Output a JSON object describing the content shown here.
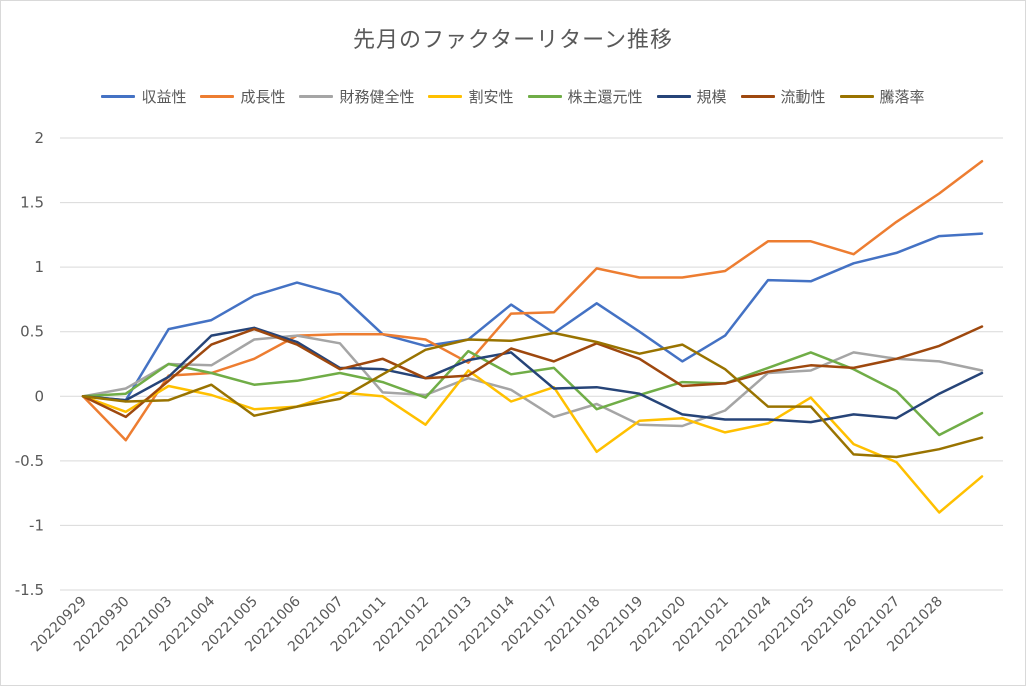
{
  "chart_data": {
    "type": "line",
    "title": "先月のファクターリターン推移",
    "xlabel": "",
    "ylabel": "",
    "ylim": [
      -1.5,
      2
    ],
    "yticks": [
      -1.5,
      -1,
      -0.5,
      0,
      0.5,
      1,
      1.5,
      2
    ],
    "grid": true,
    "legend_position": "top",
    "categories": [
      "20220929",
      "20220930",
      "20221003",
      "20221004",
      "20221005",
      "20221006",
      "20221007",
      "20221011",
      "20221012",
      "20221013",
      "20221014",
      "20221017",
      "20221018",
      "20221019",
      "20221020",
      "20221021",
      "20221024",
      "20221025",
      "20221026",
      "20221027",
      "20221028",
      ""
    ],
    "x_tick_labels": [
      "20220929",
      "20220930",
      "20221003",
      "20221004",
      "20221005",
      "20221006",
      "20221007",
      "20221011",
      "20221012",
      "20221013",
      "20221014",
      "20221017",
      "20221018",
      "20221019",
      "20221020",
      "20221021",
      "20221024",
      "20221025",
      "20221026",
      "20221027",
      "20221028"
    ],
    "series": [
      {
        "name": "収益性",
        "color": "#4472C4",
        "values": [
          0,
          -0.03,
          0.52,
          0.59,
          0.78,
          0.88,
          0.79,
          0.48,
          0.39,
          0.44,
          0.71,
          0.49,
          0.72,
          0.5,
          0.27,
          0.47,
          0.9,
          0.89,
          1.03,
          1.11,
          1.24,
          1.26
        ]
      },
      {
        "name": "成長性",
        "color": "#ED7D31",
        "values": [
          0,
          -0.34,
          0.16,
          0.18,
          0.29,
          0.47,
          0.48,
          0.48,
          0.44,
          0.26,
          0.64,
          0.65,
          0.99,
          0.92,
          0.92,
          0.97,
          1.2,
          1.2,
          1.1,
          1.35,
          1.57,
          1.82
        ]
      },
      {
        "name": "財務健全性",
        "color": "#A5A5A5",
        "values": [
          0,
          0.06,
          0.25,
          0.24,
          0.44,
          0.47,
          0.41,
          0.03,
          0.01,
          0.14,
          0.05,
          -0.16,
          -0.06,
          -0.22,
          -0.23,
          -0.11,
          0.18,
          0.2,
          0.34,
          0.29,
          0.27,
          0.2
        ]
      },
      {
        "name": "割安性",
        "color": "#FFC000",
        "values": [
          0,
          -0.12,
          0.08,
          0.01,
          -0.1,
          -0.08,
          0.03,
          0.0,
          -0.22,
          0.2,
          -0.04,
          0.07,
          -0.43,
          -0.19,
          -0.17,
          -0.28,
          -0.21,
          -0.01,
          -0.37,
          -0.51,
          -0.9,
          -0.62
        ]
      },
      {
        "name": "株主還元性",
        "color": "#70AD47",
        "values": [
          0,
          0.02,
          0.25,
          0.18,
          0.09,
          0.12,
          0.18,
          0.11,
          -0.01,
          0.35,
          0.17,
          0.22,
          -0.1,
          0.01,
          0.11,
          0.1,
          0.22,
          0.34,
          0.21,
          0.04,
          -0.3,
          -0.13
        ]
      },
      {
        "name": "規模",
        "color": "#264478",
        "values": [
          0,
          -0.03,
          0.15,
          0.47,
          0.53,
          0.42,
          0.22,
          0.21,
          0.14,
          0.28,
          0.34,
          0.06,
          0.07,
          0.02,
          -0.14,
          -0.18,
          -0.18,
          -0.2,
          -0.14,
          -0.17,
          0.02,
          0.18
        ]
      },
      {
        "name": "流動性",
        "color": "#9E480E",
        "values": [
          0,
          -0.16,
          0.12,
          0.4,
          0.52,
          0.4,
          0.21,
          0.29,
          0.14,
          0.16,
          0.37,
          0.27,
          0.41,
          0.29,
          0.08,
          0.1,
          0.19,
          0.24,
          0.22,
          0.29,
          0.39,
          0.54
        ]
      },
      {
        "name": "騰落率",
        "color": "#997300",
        "values": [
          0,
          -0.04,
          -0.03,
          0.09,
          -0.15,
          -0.08,
          -0.02,
          0.17,
          0.36,
          0.44,
          0.43,
          0.49,
          0.42,
          0.33,
          0.4,
          0.21,
          -0.08,
          -0.08,
          -0.45,
          -0.47,
          -0.41,
          -0.32
        ]
      }
    ]
  }
}
